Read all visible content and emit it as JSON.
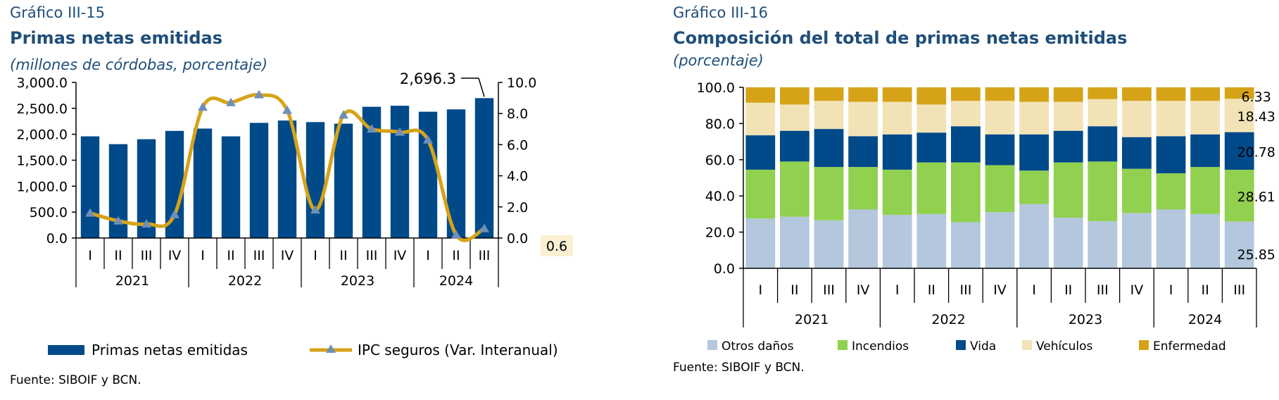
{
  "chart_data": [
    {
      "type": "bar",
      "number_label": "Gráfico III-15",
      "title": "Primas netas emitidas",
      "subtitle": "(millones de córdobas, porcentaje)",
      "source": "Fuente: SIBOIF y BCN.",
      "quarters": [
        "I",
        "II",
        "III",
        "IV",
        "I",
        "II",
        "III",
        "IV",
        "I",
        "II",
        "III",
        "IV",
        "I",
        "II",
        "III"
      ],
      "years": [
        "2021",
        "2022",
        "2023",
        "2024"
      ],
      "y_left_ticks": [
        "3,000.0",
        "2,500.0",
        "2,000.0",
        "1,500.0",
        "1,000.0",
        "500.0",
        "0.0"
      ],
      "y_right_ticks": [
        "10.0",
        "8.0",
        "6.0",
        "4.0",
        "2.0",
        "0.0"
      ],
      "ylim_left": [
        0,
        3000
      ],
      "ylim_right": [
        0,
        10
      ],
      "series": [
        {
          "name": "Primas netas emitidas",
          "axis": "left",
          "kind": "bar",
          "color": "#004a8a",
          "values": [
            1960,
            1810,
            1905,
            2065,
            2110,
            1960,
            2220,
            2265,
            2235,
            2205,
            2530,
            2550,
            2435,
            2480,
            2696.3
          ]
        },
        {
          "name": "IPC seguros (Var. Interanual)",
          "axis": "right",
          "kind": "line",
          "color": "#d6a318",
          "values": [
            1.6,
            1.1,
            0.9,
            1.5,
            8.4,
            8.7,
            9.2,
            8.2,
            1.8,
            7.9,
            7.0,
            6.8,
            6.3,
            0.2,
            0.6
          ]
        }
      ],
      "annotations": {
        "last_bar": "2,696.3",
        "last_line": "0.6"
      }
    },
    {
      "type": "stacked-bar",
      "number_label": "Gráfico III-16",
      "title": "Composición del total de primas netas emitidas",
      "subtitle": "(porcentaje)",
      "source": "Fuente: SIBOIF y BCN.",
      "quarters": [
        "I",
        "II",
        "III",
        "IV",
        "I",
        "II",
        "III",
        "IV",
        "I",
        "II",
        "III",
        "IV",
        "I",
        "II",
        "III"
      ],
      "years": [
        "2021",
        "2022",
        "2023",
        "2024"
      ],
      "y_ticks": [
        "100.0",
        "80.0",
        "60.0",
        "40.0",
        "20.0",
        "0.0"
      ],
      "ylim": [
        0,
        100
      ],
      "series": [
        {
          "name": "Otros daños",
          "color": "#b4c7dc",
          "values": [
            27.5,
            28.5,
            26.5,
            32.5,
            29.5,
            30,
            25.5,
            31,
            35.5,
            28,
            26,
            30.5,
            32.5,
            30,
            25.85
          ]
        },
        {
          "name": "Incendios",
          "color": "#92d050",
          "values": [
            27,
            30.5,
            29.5,
            23.5,
            25,
            28.5,
            33,
            26,
            18.5,
            30.5,
            33,
            24.5,
            20,
            26,
            28.61
          ]
        },
        {
          "name": "Vida",
          "color": "#004a8a",
          "values": [
            19,
            17,
            21,
            17,
            19.5,
            16.5,
            20,
            17,
            20,
            17.5,
            19.5,
            17.5,
            20.5,
            18,
            20.78
          ]
        },
        {
          "name": "Vehículos",
          "color": "#f2e3b6",
          "values": [
            18,
            14.5,
            15.5,
            19,
            18,
            15.5,
            14,
            18.5,
            18,
            16,
            15,
            20,
            19.5,
            18.5,
            18.43
          ]
        },
        {
          "name": "Enfermedad",
          "color": "#d6a318",
          "values": [
            8.5,
            9.5,
            7.5,
            8,
            8,
            9.5,
            7.5,
            7.5,
            8,
            8,
            6.5,
            7.5,
            7.5,
            7.5,
            6.33
          ]
        }
      ],
      "value_labels": [
        "25.85",
        "28.61",
        "20.78",
        "18.43",
        "6.33"
      ]
    }
  ]
}
